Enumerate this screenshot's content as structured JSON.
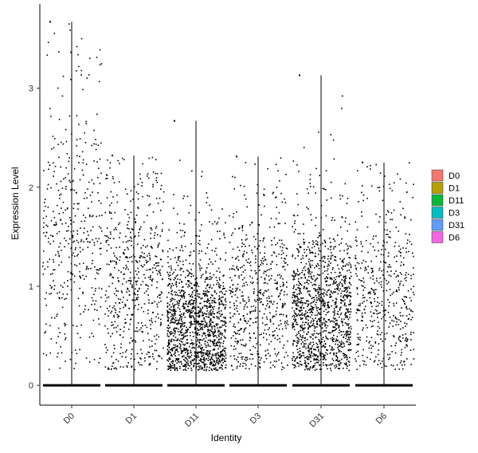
{
  "chart_data": {
    "type": "scatter",
    "subtype": "violin-jitter",
    "title": "",
    "xlabel": "Identity",
    "ylabel": "Expression Level",
    "ylim": [
      -0.2,
      3.85
    ],
    "yticks": [
      0,
      1,
      2,
      3
    ],
    "grid": false,
    "legend_position": "right",
    "categories": [
      "D0",
      "D1",
      "D11",
      "D3",
      "D31",
      "D6"
    ],
    "series": [
      {
        "name": "D0",
        "color": "#F8766D",
        "max": 3.67,
        "nonzero_cells": 420,
        "nonzero_mean": 1.45,
        "nonzero_sd": 0.7,
        "zero_fraction": 0.7
      },
      {
        "name": "D1",
        "color": "#B79F00",
        "max": 2.32,
        "nonzero_cells": 560,
        "nonzero_mean": 0.95,
        "nonzero_sd": 0.55,
        "zero_fraction": 0.72
      },
      {
        "name": "D11",
        "color": "#00BA38",
        "max": 2.67,
        "nonzero_cells": 1350,
        "nonzero_mean": 0.55,
        "nonzero_sd": 0.35,
        "zero_fraction": 0.6
      },
      {
        "name": "D3",
        "color": "#00BFC4",
        "max": 2.31,
        "nonzero_cells": 560,
        "nonzero_mean": 0.8,
        "nonzero_sd": 0.5,
        "zero_fraction": 0.7
      },
      {
        "name": "D31",
        "color": "#619CFF",
        "max": 3.13,
        "nonzero_cells": 1250,
        "nonzero_mean": 0.7,
        "nonzero_sd": 0.4,
        "zero_fraction": 0.55
      },
      {
        "name": "D6",
        "color": "#F564E3",
        "max": 2.25,
        "nonzero_cells": 480,
        "nonzero_mean": 0.85,
        "nonzero_sd": 0.5,
        "zero_fraction": 0.72
      }
    ],
    "legend": {
      "entries": [
        "D0",
        "D1",
        "D11",
        "D3",
        "D31",
        "D6"
      ]
    },
    "point_color": "#000000"
  }
}
